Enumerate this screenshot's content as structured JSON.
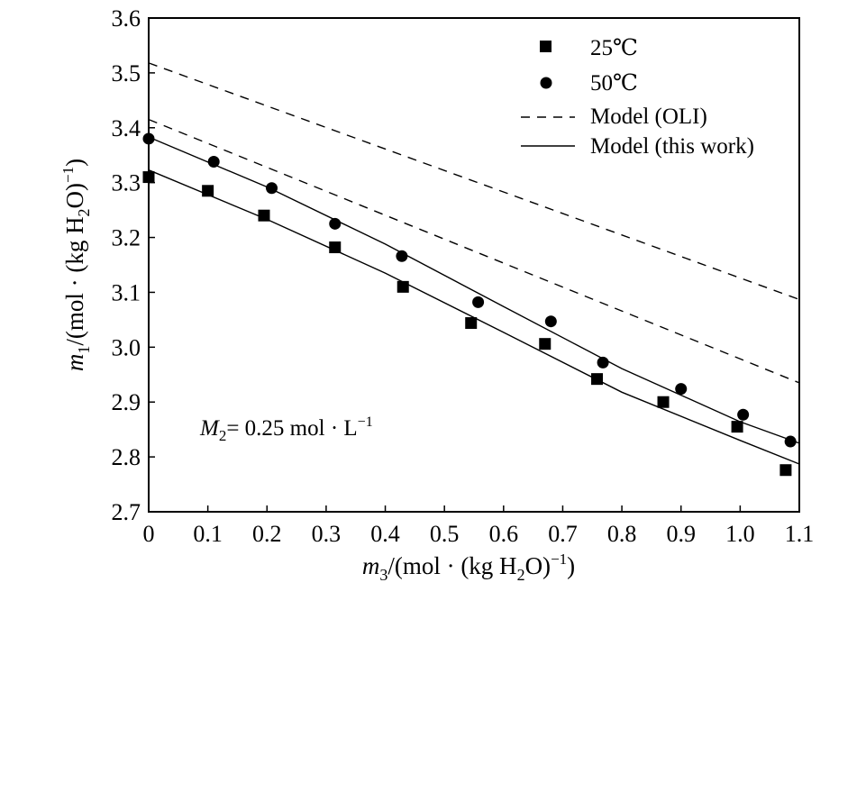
{
  "chart_data": {
    "type": "scatter",
    "xlabel": {
      "var": "m",
      "sub": "3",
      "pre": "/(mol · (kg H",
      "h2o_sub": "2",
      "post": "O)",
      "sup": "−1",
      "close": ")"
    },
    "ylabel": {
      "var": "m",
      "sub": "1",
      "pre": "/(mol · (kg H",
      "h2o_sub": "2",
      "post": "O)",
      "sup": "−1",
      "close": ")"
    },
    "xlim": [
      0,
      1.1
    ],
    "ylim": [
      2.7,
      3.6
    ],
    "x_ticks": [
      "0",
      "0.1",
      "0.2",
      "0.3",
      "0.4",
      "0.5",
      "0.6",
      "0.7",
      "0.8",
      "0.9",
      "1.0",
      "1.1"
    ],
    "y_ticks": [
      "2.7",
      "2.8",
      "2.9",
      "3.0",
      "3.1",
      "3.2",
      "3.3",
      "3.4",
      "3.5",
      "3.6"
    ],
    "annotation": {
      "var": "M",
      "sub": "2",
      "text": "= 0.25 mol · L",
      "sup": "−1"
    },
    "legend_position": "top-right",
    "series": [
      {
        "name": "25℃",
        "kind": "points",
        "marker": "square",
        "x": [
          0.0,
          0.1,
          0.195,
          0.315,
          0.43,
          0.545,
          0.67,
          0.758,
          0.87,
          0.995,
          1.077
        ],
        "y": [
          3.31,
          3.285,
          3.24,
          3.182,
          3.11,
          3.044,
          3.006,
          2.942,
          2.9,
          2.855,
          2.776
        ]
      },
      {
        "name": "50℃",
        "kind": "points",
        "marker": "circle",
        "x": [
          0.0,
          0.11,
          0.208,
          0.315,
          0.428,
          0.557,
          0.68,
          0.768,
          0.9,
          1.005,
          1.085
        ],
        "y": [
          3.38,
          3.338,
          3.29,
          3.225,
          3.166,
          3.082,
          3.047,
          2.972,
          2.924,
          2.877,
          2.828
        ]
      },
      {
        "name": "Model (OLI)",
        "kind": "line",
        "dash": true,
        "x": [
          0.0,
          1.1
        ],
        "y": [
          3.518,
          3.087
        ]
      },
      {
        "name": "",
        "kind": "line",
        "dash": true,
        "x": [
          0.0,
          1.1
        ],
        "y": [
          3.415,
          2.935
        ]
      },
      {
        "name": "Model (this work)",
        "kind": "line",
        "dash": false,
        "x": [
          0.0,
          0.2,
          0.4,
          0.6,
          0.8,
          1.0,
          1.1
        ],
        "y": [
          3.383,
          3.292,
          3.188,
          3.074,
          2.961,
          2.864,
          2.825
        ]
      },
      {
        "name": "",
        "kind": "line",
        "dash": false,
        "x": [
          0.0,
          0.2,
          0.4,
          0.6,
          0.8,
          1.0,
          1.1
        ],
        "y": [
          3.323,
          3.233,
          3.135,
          3.027,
          2.918,
          2.83,
          2.787
        ]
      }
    ]
  }
}
